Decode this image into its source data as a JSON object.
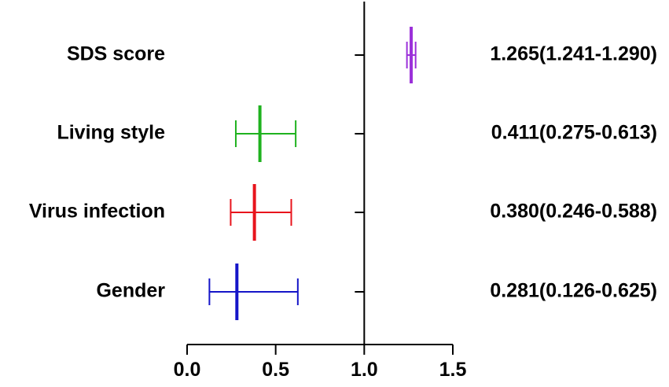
{
  "chart_data": {
    "type": "forest",
    "title": "",
    "xlabel": "",
    "ylabel": "",
    "xlim": [
      0.0,
      1.5
    ],
    "reference_line": 1.0,
    "x_ticks": [
      0.0,
      0.5,
      1.0,
      1.5
    ],
    "x_tick_labels": [
      "0.0",
      "0.5",
      "1.0",
      "1.5"
    ],
    "grid": false,
    "rows": [
      {
        "label": "SDS score",
        "estimate": 1.265,
        "lower": 1.241,
        "upper": 1.29,
        "text": "1.265(1.241-1.290)",
        "color": "#9b30d9"
      },
      {
        "label": "Living style",
        "estimate": 0.411,
        "lower": 0.275,
        "upper": 0.613,
        "text": "0.411(0.275-0.613)",
        "color": "#1fb21f"
      },
      {
        "label": "Virus infection",
        "estimate": 0.38,
        "lower": 0.246,
        "upper": 0.588,
        "text": "0.380(0.246-0.588)",
        "color": "#e8141c"
      },
      {
        "label": "Gender",
        "estimate": 0.281,
        "lower": 0.126,
        "upper": 0.625,
        "text": "0.281(0.126-0.625)",
        "color": "#1515c8"
      }
    ]
  }
}
